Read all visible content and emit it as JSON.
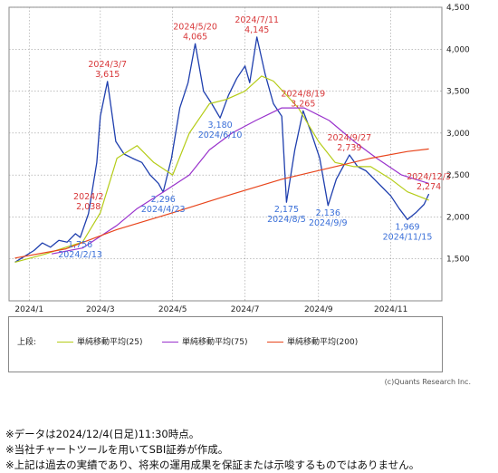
{
  "chart_data": {
    "type": "candlestick",
    "title": "",
    "ylim": [
      1000,
      4500
    ],
    "y_ticks": [
      "1,500",
      "2,000",
      "2,500",
      "3,000",
      "3,500",
      "4,000",
      "4,500"
    ],
    "x_ticks": [
      "2024/1",
      "2024/3",
      "2024/5",
      "2024/7",
      "2024/9",
      "2024/11"
    ],
    "x_tick_dates": [
      "2024-01-01",
      "2024-03-01",
      "2024-05-01",
      "2024-07-01",
      "2024-09-01",
      "2024-11-01"
    ],
    "x_range": [
      "2023-12-15",
      "2024-12-14"
    ],
    "grid": true,
    "price_series": [
      [
        "2023-12-20",
        1460
      ],
      [
        "2023-12-28",
        1530
      ],
      [
        "2024-01-05",
        1600
      ],
      [
        "2024-01-12",
        1690
      ],
      [
        "2024-01-19",
        1640
      ],
      [
        "2024-01-26",
        1720
      ],
      [
        "2024-02-02",
        1700
      ],
      [
        "2024-02-09",
        1800
      ],
      [
        "2024-02-13",
        1756
      ],
      [
        "2024-02-20",
        2038
      ],
      [
        "2024-02-27",
        2650
      ],
      [
        "2024-03-01",
        3200
      ],
      [
        "2024-03-07",
        3615
      ],
      [
        "2024-03-14",
        2900
      ],
      [
        "2024-03-21",
        2750
      ],
      [
        "2024-03-28",
        2700
      ],
      [
        "2024-04-05",
        2650
      ],
      [
        "2024-04-12",
        2500
      ],
      [
        "2024-04-19",
        2400
      ],
      [
        "2024-04-23",
        2296
      ],
      [
        "2024-04-30",
        2700
      ],
      [
        "2024-05-07",
        3300
      ],
      [
        "2024-05-14",
        3600
      ],
      [
        "2024-05-20",
        4065
      ],
      [
        "2024-05-27",
        3500
      ],
      [
        "2024-06-03",
        3350
      ],
      [
        "2024-06-10",
        3180
      ],
      [
        "2024-06-17",
        3450
      ],
      [
        "2024-06-24",
        3650
      ],
      [
        "2024-07-01",
        3800
      ],
      [
        "2024-07-05",
        3600
      ],
      [
        "2024-07-11",
        4145
      ],
      [
        "2024-07-18",
        3700
      ],
      [
        "2024-07-25",
        3350
      ],
      [
        "2024-08-01",
        3200
      ],
      [
        "2024-08-05",
        2175
      ],
      [
        "2024-08-12",
        2800
      ],
      [
        "2024-08-19",
        3265
      ],
      [
        "2024-08-26",
        3000
      ],
      [
        "2024-09-02",
        2700
      ],
      [
        "2024-09-09",
        2136
      ],
      [
        "2024-09-16",
        2450
      ],
      [
        "2024-09-27",
        2739
      ],
      [
        "2024-10-04",
        2600
      ],
      [
        "2024-10-11",
        2550
      ],
      [
        "2024-10-18",
        2450
      ],
      [
        "2024-10-25",
        2350
      ],
      [
        "2024-11-01",
        2250
      ],
      [
        "2024-11-08",
        2100
      ],
      [
        "2024-11-15",
        1969
      ],
      [
        "2024-11-22",
        2050
      ],
      [
        "2024-11-29",
        2150
      ],
      [
        "2024-12-03",
        2274
      ]
    ],
    "series": [
      {
        "name": "単純移動平均(25)",
        "color": "#b5cc18",
        "points": [
          [
            "2023-12-20",
            1460
          ],
          [
            "2024-01-15",
            1560
          ],
          [
            "2024-02-01",
            1640
          ],
          [
            "2024-02-15",
            1700
          ],
          [
            "2024-03-01",
            2050
          ],
          [
            "2024-03-15",
            2700
          ],
          [
            "2024-04-01",
            2850
          ],
          [
            "2024-04-15",
            2650
          ],
          [
            "2024-05-01",
            2500
          ],
          [
            "2024-05-15",
            3000
          ],
          [
            "2024-06-01",
            3350
          ],
          [
            "2024-06-15",
            3400
          ],
          [
            "2024-07-01",
            3500
          ],
          [
            "2024-07-15",
            3680
          ],
          [
            "2024-07-25",
            3620
          ],
          [
            "2024-08-15",
            3300
          ],
          [
            "2024-09-01",
            2900
          ],
          [
            "2024-09-15",
            2650
          ],
          [
            "2024-10-01",
            2600
          ],
          [
            "2024-10-15",
            2600
          ],
          [
            "2024-11-01",
            2450
          ],
          [
            "2024-11-15",
            2300
          ],
          [
            "2024-12-03",
            2200
          ]
        ]
      },
      {
        "name": "単純移動平均(75)",
        "color": "#9932cc",
        "points": [
          [
            "2024-01-20",
            1560
          ],
          [
            "2024-02-15",
            1630
          ],
          [
            "2024-03-15",
            1900
          ],
          [
            "2024-04-01",
            2100
          ],
          [
            "2024-04-23",
            2296
          ],
          [
            "2024-05-15",
            2500
          ],
          [
            "2024-06-01",
            2800
          ],
          [
            "2024-06-20",
            3000
          ],
          [
            "2024-07-10",
            3150
          ],
          [
            "2024-08-01",
            3300
          ],
          [
            "2024-08-20",
            3300
          ],
          [
            "2024-09-10",
            3150
          ],
          [
            "2024-10-01",
            2900
          ],
          [
            "2024-10-20",
            2700
          ],
          [
            "2024-11-10",
            2500
          ],
          [
            "2024-12-03",
            2400
          ]
        ]
      },
      {
        "name": "単純移動平均(200)",
        "color": "#e8451c",
        "points": [
          [
            "2023-12-20",
            1510
          ],
          [
            "2024-02-01",
            1620
          ],
          [
            "2024-03-15",
            1850
          ],
          [
            "2024-05-01",
            2050
          ],
          [
            "2024-06-15",
            2250
          ],
          [
            "2024-08-01",
            2450
          ],
          [
            "2024-09-15",
            2600
          ],
          [
            "2024-10-15",
            2700
          ],
          [
            "2024-11-15",
            2780
          ],
          [
            "2024-12-03",
            2810
          ]
        ]
      }
    ],
    "annotations": [
      {
        "date": "2024-02-13",
        "value": 1756,
        "label_date": "2024/2/13",
        "label_value": "1,756",
        "color": "#3a6fd8",
        "pos": "below"
      },
      {
        "date": "2024-02-20",
        "value": 2038,
        "label_date": "2024/2",
        "label_value": "2,038",
        "color": "#d8383a",
        "pos": "above"
      },
      {
        "date": "2024-03-07",
        "value": 3615,
        "label_date": "2024/3/7",
        "label_value": "3,615",
        "color": "#d8383a",
        "pos": "above"
      },
      {
        "date": "2024-04-23",
        "value": 2296,
        "label_date": "2024/4/23",
        "label_value": "2,296",
        "color": "#3a6fd8",
        "pos": "below"
      },
      {
        "date": "2024-05-20",
        "value": 4065,
        "label_date": "2024/5/20",
        "label_value": "4,065",
        "color": "#d8383a",
        "pos": "above"
      },
      {
        "date": "2024-06-10",
        "value": 3180,
        "label_date": "2024/6/10",
        "label_value": "3,180",
        "color": "#3a6fd8",
        "pos": "below"
      },
      {
        "date": "2024-07-11",
        "value": 4145,
        "label_date": "2024/7/11",
        "label_value": "4,145",
        "color": "#d8383a",
        "pos": "above"
      },
      {
        "date": "2024-08-05",
        "value": 2175,
        "label_date": "2024/8/5",
        "label_value": "2,175",
        "color": "#3a6fd8",
        "pos": "below"
      },
      {
        "date": "2024-08-19",
        "value": 3265,
        "label_date": "2024/8/19",
        "label_value": "3,265",
        "color": "#d8383a",
        "pos": "above"
      },
      {
        "date": "2024-09-09",
        "value": 2136,
        "label_date": "2024/9/9",
        "label_value": "2,136",
        "color": "#3a6fd8",
        "pos": "below"
      },
      {
        "date": "2024-09-27",
        "value": 2739,
        "label_date": "2024/9/27",
        "label_value": "2,739",
        "color": "#d8383a",
        "pos": "above"
      },
      {
        "date": "2024-11-15",
        "value": 1969,
        "label_date": "2024/11/15",
        "label_value": "1,969",
        "color": "#3a6fd8",
        "pos": "below"
      },
      {
        "date": "2024-12-03",
        "value": 2274,
        "label_date": "2024/12/3",
        "label_value": "2,274",
        "color": "#d8383a",
        "pos": "above"
      }
    ]
  },
  "legend": {
    "prefix": "上段:",
    "items": [
      {
        "label": "単純移動平均(25)",
        "color": "#b5cc18"
      },
      {
        "label": "単純移動平均(75)",
        "color": "#9932cc"
      },
      {
        "label": "単純移動平均(200)",
        "color": "#e8451c"
      }
    ]
  },
  "credit": "(c)Quants Research Inc.",
  "notes": [
    "※データは2024/12/4(日足)11:30時点。",
    "※当社チャートツールを用いてSBI証券が作成。",
    "※上記は過去の実績であり、将来の運用成果を保証または示唆するものではありません。"
  ]
}
